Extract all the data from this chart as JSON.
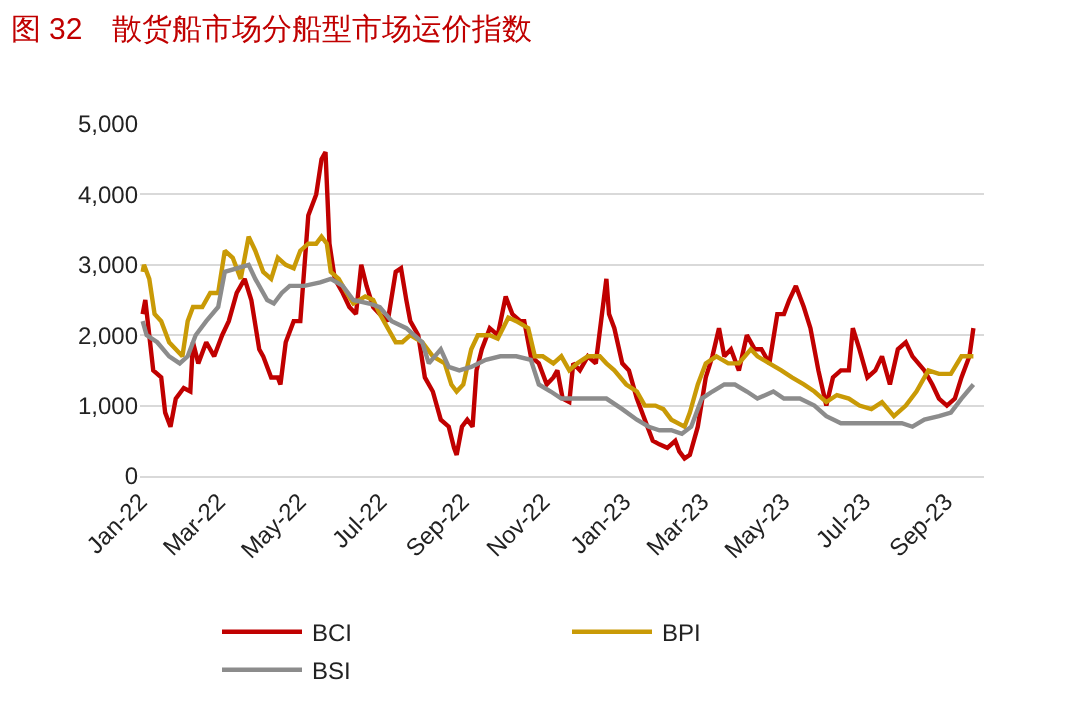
{
  "chart_data": {
    "type": "line",
    "title": "图 32　散货船市场分船型市场运价指数",
    "xlim": [
      "2022-01-01",
      "2023-09-30"
    ],
    "xticks": [
      {
        "value": "2022-01-01",
        "label": "Jan-22"
      },
      {
        "value": "2022-03-01",
        "label": "Mar-22"
      },
      {
        "value": "2022-05-01",
        "label": "May-22"
      },
      {
        "value": "2022-07-01",
        "label": "Jul-22"
      },
      {
        "value": "2022-09-01",
        "label": "Sep-22"
      },
      {
        "value": "2022-11-01",
        "label": "Nov-22"
      },
      {
        "value": "2023-01-01",
        "label": "Jan-23"
      },
      {
        "value": "2023-03-01",
        "label": "Mar-23"
      },
      {
        "value": "2023-05-01",
        "label": "May-23"
      },
      {
        "value": "2023-07-01",
        "label": "Jul-23"
      },
      {
        "value": "2023-09-01",
        "label": "Sep-23"
      }
    ],
    "ylim": [
      0,
      5000
    ],
    "yticks": [
      {
        "value": 0,
        "label": "0"
      },
      {
        "value": 1000,
        "label": "1,000"
      },
      {
        "value": 2000,
        "label": "2,000"
      },
      {
        "value": 3000,
        "label": "3,000"
      },
      {
        "value": 4000,
        "label": "4,000"
      },
      {
        "value": 5000,
        "label": "5,000"
      }
    ],
    "grid": "y",
    "legend": "bottom",
    "marker": "none",
    "line_style": "solid",
    "series": [
      {
        "name": "BCI",
        "color": "#c00000",
        "x": [
          "2022-01-03",
          "2022-01-05",
          "2022-01-11",
          "2022-01-17",
          "2022-01-20",
          "2022-01-24",
          "2022-01-28",
          "2022-02-03",
          "2022-02-08",
          "2022-02-10",
          "2022-02-14",
          "2022-02-20",
          "2022-02-26",
          "2022-03-04",
          "2022-03-09",
          "2022-03-15",
          "2022-03-21",
          "2022-03-26",
          "2022-04-01",
          "2022-04-04",
          "2022-04-10",
          "2022-04-15",
          "2022-04-17",
          "2022-04-21",
          "2022-04-27",
          "2022-05-02",
          "2022-05-08",
          "2022-05-14",
          "2022-05-18",
          "2022-05-21",
          "2022-05-24",
          "2022-05-28",
          "2022-06-03",
          "2022-06-08",
          "2022-06-13",
          "2022-06-17",
          "2022-06-21",
          "2022-06-26",
          "2022-07-01",
          "2022-07-07",
          "2022-07-13",
          "2022-07-17",
          "2022-07-21",
          "2022-07-24",
          "2022-07-30",
          "2022-08-04",
          "2022-08-10",
          "2022-08-16",
          "2022-08-22",
          "2022-08-26",
          "2022-08-28",
          "2022-09-01",
          "2022-09-05",
          "2022-09-09",
          "2022-09-12",
          "2022-09-16",
          "2022-09-22",
          "2022-09-28",
          "2022-10-04",
          "2022-10-09",
          "2022-10-15",
          "2022-10-18",
          "2022-10-23",
          "2022-10-29",
          "2022-11-04",
          "2022-11-09",
          "2022-11-12",
          "2022-11-16",
          "2022-11-21",
          "2022-11-24",
          "2022-11-29",
          "2022-12-05",
          "2022-12-11",
          "2022-12-15",
          "2022-12-19",
          "2022-12-21",
          "2022-12-25",
          "2022-12-31",
          "2023-01-05",
          "2023-01-11",
          "2023-01-17",
          "2023-01-23",
          "2023-01-28",
          "2023-02-03",
          "2023-02-09",
          "2023-02-12",
          "2023-02-16",
          "2023-02-20",
          "2023-02-26",
          "2023-03-04",
          "2023-03-09",
          "2023-03-14",
          "2023-03-18",
          "2023-03-23",
          "2023-03-29",
          "2023-04-04",
          "2023-04-10",
          "2023-04-15",
          "2023-04-21",
          "2023-04-27",
          "2023-05-02",
          "2023-05-06",
          "2023-05-11",
          "2023-05-17",
          "2023-05-22",
          "2023-05-28",
          "2023-06-03",
          "2023-06-08",
          "2023-06-14",
          "2023-06-20",
          "2023-06-23",
          "2023-06-28",
          "2023-07-04",
          "2023-07-10",
          "2023-07-15",
          "2023-07-21",
          "2023-07-27",
          "2023-08-02",
          "2023-08-07",
          "2023-08-16",
          "2023-08-22",
          "2023-08-27",
          "2023-09-02",
          "2023-09-08",
          "2023-09-13",
          "2023-09-19",
          "2023-09-22"
        ],
        "values": [
          2300,
          2500,
          1500,
          1400,
          900,
          700,
          1100,
          1250,
          1200,
          1900,
          1600,
          1900,
          1700,
          2000,
          2200,
          2600,
          2800,
          2500,
          1800,
          1700,
          1400,
          1400,
          1300,
          1900,
          2200,
          2200,
          3700,
          4000,
          4500,
          4600,
          3300,
          2800,
          2600,
          2400,
          2300,
          3000,
          2700,
          2400,
          2300,
          2200,
          2900,
          2950,
          2500,
          2200,
          2000,
          1400,
          1200,
          800,
          700,
          400,
          300,
          700,
          800,
          700,
          1500,
          1800,
          2100,
          2000,
          2550,
          2300,
          2200,
          2200,
          1700,
          1600,
          1300,
          1400,
          1500,
          1100,
          1050,
          1600,
          1500,
          1700,
          1600,
          2200,
          2800,
          2300,
          2100,
          1600,
          1500,
          1100,
          800,
          500,
          450,
          400,
          500,
          350,
          250,
          300,
          700,
          1400,
          1700,
          2100,
          1700,
          1800,
          1500,
          2000,
          1800,
          1800,
          1600,
          2300,
          2300,
          2500,
          2700,
          2400,
          2100,
          1500,
          1000,
          1400,
          1500,
          1500,
          2100,
          1800,
          1400,
          1500,
          1700,
          1300,
          1800,
          1900,
          1700,
          1500,
          1300,
          1100,
          1000,
          1100,
          1400,
          1700,
          2100
        ]
      },
      {
        "name": "BPI",
        "color": "#c99a06",
        "x": [
          "2022-01-03",
          "2022-01-04",
          "2022-01-08",
          "2022-01-12",
          "2022-01-17",
          "2022-01-23",
          "2022-01-28",
          "2022-02-02",
          "2022-02-06",
          "2022-02-10",
          "2022-02-17",
          "2022-02-23",
          "2022-03-01",
          "2022-03-06",
          "2022-03-12",
          "2022-03-18",
          "2022-03-24",
          "2022-03-29",
          "2022-04-04",
          "2022-04-10",
          "2022-04-15",
          "2022-04-21",
          "2022-04-27",
          "2022-05-02",
          "2022-05-08",
          "2022-05-14",
          "2022-05-18",
          "2022-05-22",
          "2022-05-25",
          "2022-05-31",
          "2022-06-06",
          "2022-06-11",
          "2022-06-20",
          "2022-06-26",
          "2022-07-01",
          "2022-07-07",
          "2022-07-13",
          "2022-07-18",
          "2022-07-24",
          "2022-08-02",
          "2022-08-10",
          "2022-08-19",
          "2022-08-24",
          "2022-08-28",
          "2022-09-02",
          "2022-09-08",
          "2022-09-13",
          "2022-09-22",
          "2022-09-28",
          "2022-10-06",
          "2022-10-12",
          "2022-10-21",
          "2022-10-26",
          "2022-11-01",
          "2022-11-09",
          "2022-11-15",
          "2022-11-21",
          "2022-11-27",
          "2022-12-05",
          "2022-12-14",
          "2022-12-19",
          "2022-12-25",
          "2023-01-03",
          "2023-01-11",
          "2023-01-17",
          "2023-01-25",
          "2023-01-31",
          "2023-02-06",
          "2023-02-16",
          "2023-02-20",
          "2023-02-26",
          "2023-03-04",
          "2023-03-12",
          "2023-03-21",
          "2023-03-29",
          "2023-04-07",
          "2023-04-12",
          "2023-04-21",
          "2023-04-30",
          "2023-05-08",
          "2023-05-17",
          "2023-05-25",
          "2023-06-03",
          "2023-06-11",
          "2023-06-20",
          "2023-06-28",
          "2023-07-07",
          "2023-07-15",
          "2023-07-24",
          "2023-08-02",
          "2023-08-10",
          "2023-08-19",
          "2023-08-27",
          "2023-09-05",
          "2023-09-13",
          "2023-09-22"
        ],
        "values": [
          2900,
          3000,
          2800,
          2300,
          2200,
          1900,
          1800,
          1700,
          2200,
          2400,
          2400,
          2600,
          2600,
          3200,
          3100,
          2800,
          3400,
          3200,
          2900,
          2800,
          3100,
          3000,
          2950,
          3200,
          3300,
          3300,
          3400,
          3300,
          2900,
          2800,
          2600,
          2450,
          2550,
          2500,
          2300,
          2100,
          1900,
          1900,
          2000,
          1900,
          1700,
          1600,
          1300,
          1200,
          1300,
          1800,
          2000,
          2000,
          1950,
          2250,
          2200,
          2100,
          1700,
          1700,
          1600,
          1700,
          1500,
          1600,
          1700,
          1700,
          1600,
          1500,
          1300,
          1200,
          1000,
          1000,
          950,
          800,
          700,
          900,
          1300,
          1600,
          1700,
          1600,
          1600,
          1800,
          1700,
          1600,
          1500,
          1400,
          1300,
          1200,
          1050,
          1150,
          1100,
          1000,
          950,
          1050,
          850,
          1000,
          1200,
          1500,
          1450,
          1450,
          1700,
          1700
        ]
      },
      {
        "name": "BSI",
        "color": "#8c8c8c",
        "x": [
          "2022-01-03",
          "2022-01-06",
          "2022-01-14",
          "2022-01-23",
          "2022-01-31",
          "2022-02-06",
          "2022-02-12",
          "2022-02-20",
          "2022-03-01",
          "2022-03-06",
          "2022-03-15",
          "2022-03-24",
          "2022-03-29",
          "2022-04-07",
          "2022-04-12",
          "2022-04-18",
          "2022-04-24",
          "2022-05-05",
          "2022-05-17",
          "2022-05-25",
          "2022-06-03",
          "2022-06-11",
          "2022-06-23",
          "2022-07-01",
          "2022-07-10",
          "2022-07-21",
          "2022-08-02",
          "2022-08-07",
          "2022-08-16",
          "2022-08-22",
          "2022-08-30",
          "2022-09-08",
          "2022-09-19",
          "2022-09-30",
          "2022-10-12",
          "2022-10-23",
          "2022-10-29",
          "2022-11-07",
          "2022-11-15",
          "2022-11-27",
          "2022-12-08",
          "2022-12-19",
          "2022-12-31",
          "2023-01-11",
          "2023-01-20",
          "2023-01-28",
          "2023-02-06",
          "2023-02-14",
          "2023-02-21",
          "2023-03-01",
          "2023-03-09",
          "2023-03-18",
          "2023-03-26",
          "2023-04-04",
          "2023-04-12",
          "2023-04-24",
          "2023-05-02",
          "2023-05-14",
          "2023-05-25",
          "2023-06-03",
          "2023-06-14",
          "2023-06-25",
          "2023-07-07",
          "2023-07-18",
          "2023-07-30",
          "2023-08-07",
          "2023-08-16",
          "2023-08-27",
          "2023-09-05",
          "2023-09-13",
          "2023-09-22"
        ],
        "values": [
          2200,
          2000,
          1900,
          1700,
          1600,
          1700,
          2000,
          2200,
          2400,
          2900,
          2950,
          3000,
          2800,
          2500,
          2450,
          2600,
          2700,
          2700,
          2750,
          2800,
          2700,
          2500,
          2450,
          2400,
          2200,
          2100,
          1900,
          1600,
          1800,
          1550,
          1500,
          1550,
          1650,
          1700,
          1700,
          1650,
          1300,
          1200,
          1100,
          1100,
          1100,
          1100,
          950,
          800,
          700,
          650,
          650,
          600,
          700,
          1100,
          1200,
          1300,
          1300,
          1200,
          1100,
          1200,
          1100,
          1100,
          1000,
          850,
          750,
          750,
          750,
          750,
          750,
          700,
          800,
          850,
          900,
          1100,
          1300
        ]
      }
    ]
  }
}
